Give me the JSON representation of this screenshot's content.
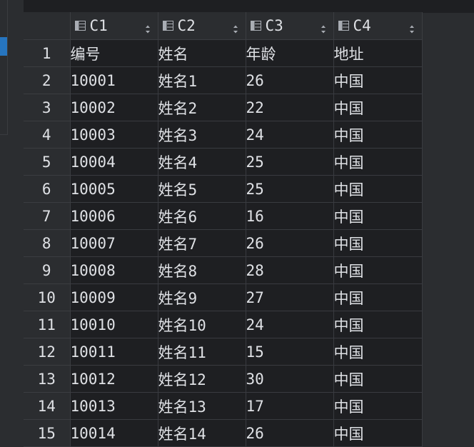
{
  "columns": [
    {
      "label": "C1"
    },
    {
      "label": "C2"
    },
    {
      "label": "C3"
    },
    {
      "label": "C4"
    }
  ],
  "rows": [
    {
      "num": "1",
      "cells": [
        "编号",
        "姓名",
        "年龄",
        "地址"
      ]
    },
    {
      "num": "2",
      "cells": [
        "10001",
        "姓名1",
        "26",
        "中国"
      ]
    },
    {
      "num": "3",
      "cells": [
        "10002",
        "姓名2",
        "22",
        "中国"
      ]
    },
    {
      "num": "4",
      "cells": [
        "10003",
        "姓名3",
        "24",
        "中国"
      ]
    },
    {
      "num": "5",
      "cells": [
        "10004",
        "姓名4",
        "25",
        "中国"
      ]
    },
    {
      "num": "6",
      "cells": [
        "10005",
        "姓名5",
        "25",
        "中国"
      ]
    },
    {
      "num": "7",
      "cells": [
        "10006",
        "姓名6",
        "16",
        "中国"
      ]
    },
    {
      "num": "8",
      "cells": [
        "10007",
        "姓名7",
        "26",
        "中国"
      ]
    },
    {
      "num": "9",
      "cells": [
        "10008",
        "姓名8",
        "28",
        "中国"
      ]
    },
    {
      "num": "10",
      "cells": [
        "10009",
        "姓名9",
        "27",
        "中国"
      ]
    },
    {
      "num": "11",
      "cells": [
        "10010",
        "姓名10",
        "24",
        "中国"
      ]
    },
    {
      "num": "12",
      "cells": [
        "10011",
        "姓名11",
        "15",
        "中国"
      ]
    },
    {
      "num": "13",
      "cells": [
        "10012",
        "姓名12",
        "30",
        "中国"
      ]
    },
    {
      "num": "14",
      "cells": [
        "10013",
        "姓名13",
        "17",
        "中国"
      ]
    },
    {
      "num": "15",
      "cells": [
        "10014",
        "姓名14",
        "26",
        "中国"
      ]
    }
  ],
  "icons": {
    "column_type": "table-column-icon",
    "sort": "sort-arrows-icon"
  },
  "colors": {
    "background": "#2b2d30",
    "grid_background": "#1e1f22",
    "text": "#dfe1e5",
    "selection_accent": "#2675bf"
  }
}
